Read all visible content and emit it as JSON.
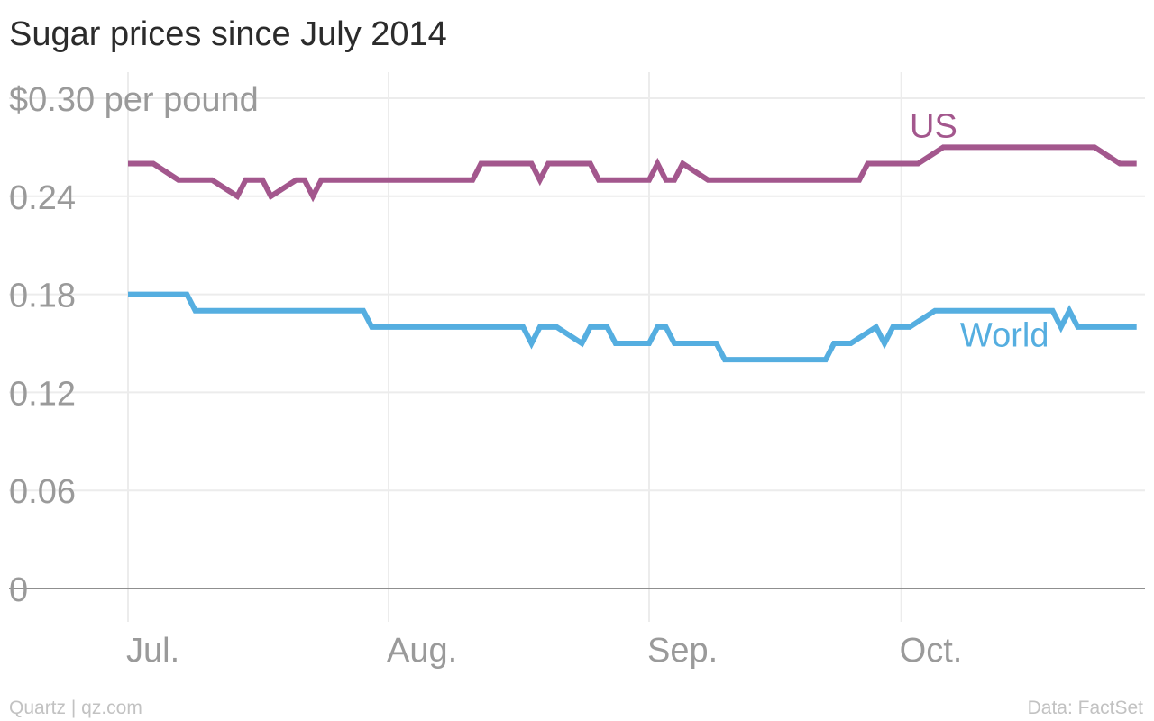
{
  "chart_data": {
    "type": "line",
    "title": "Sugar prices since July 2014",
    "xlabel": "",
    "ylabel": "",
    "ylim": [
      0,
      0.3
    ],
    "y_ticks": [
      0,
      0.06,
      0.12,
      0.18,
      0.24,
      0.3
    ],
    "y_tick_labels": [
      "0",
      "0.06",
      "0.12",
      "0.18",
      "0.24",
      "$0.30 per pound"
    ],
    "x_ticks": [
      "2014-07-01",
      "2014-08-01",
      "2014-09-01",
      "2014-10-01"
    ],
    "x_tick_labels": [
      "Jul.",
      "Aug.",
      "Sep.",
      "Oct."
    ],
    "xlim": [
      "2014-07-01",
      "2014-10-29"
    ],
    "grid": true,
    "legend": "direct labels on lines",
    "series": [
      {
        "name": "US",
        "color": "#a3578d",
        "points": [
          [
            "2014-07-01",
            0.26
          ],
          [
            "2014-07-04",
            0.26
          ],
          [
            "2014-07-07",
            0.25
          ],
          [
            "2014-07-11",
            0.25
          ],
          [
            "2014-07-14",
            0.24
          ],
          [
            "2014-07-15",
            0.25
          ],
          [
            "2014-07-17",
            0.25
          ],
          [
            "2014-07-18",
            0.24
          ],
          [
            "2014-07-21",
            0.25
          ],
          [
            "2014-07-22",
            0.25
          ],
          [
            "2014-07-23",
            0.24
          ],
          [
            "2014-07-24",
            0.25
          ],
          [
            "2014-08-11",
            0.25
          ],
          [
            "2014-08-12",
            0.26
          ],
          [
            "2014-08-18",
            0.26
          ],
          [
            "2014-08-19",
            0.25
          ],
          [
            "2014-08-20",
            0.26
          ],
          [
            "2014-08-25",
            0.26
          ],
          [
            "2014-08-26",
            0.25
          ],
          [
            "2014-09-01",
            0.25
          ],
          [
            "2014-09-02",
            0.26
          ],
          [
            "2014-09-03",
            0.25
          ],
          [
            "2014-09-04",
            0.25
          ],
          [
            "2014-09-05",
            0.26
          ],
          [
            "2014-09-08",
            0.25
          ],
          [
            "2014-09-26",
            0.25
          ],
          [
            "2014-09-27",
            0.26
          ],
          [
            "2014-10-03",
            0.26
          ],
          [
            "2014-10-06",
            0.27
          ],
          [
            "2014-10-24",
            0.27
          ],
          [
            "2014-10-27",
            0.26
          ],
          [
            "2014-10-29",
            0.26
          ]
        ]
      },
      {
        "name": "World",
        "color": "#55aee0",
        "points": [
          [
            "2014-07-01",
            0.18
          ],
          [
            "2014-07-08",
            0.18
          ],
          [
            "2014-07-09",
            0.17
          ],
          [
            "2014-07-29",
            0.17
          ],
          [
            "2014-07-30",
            0.16
          ],
          [
            "2014-08-17",
            0.16
          ],
          [
            "2014-08-18",
            0.15
          ],
          [
            "2014-08-19",
            0.16
          ],
          [
            "2014-08-21",
            0.16
          ],
          [
            "2014-08-24",
            0.15
          ],
          [
            "2014-08-25",
            0.16
          ],
          [
            "2014-08-27",
            0.16
          ],
          [
            "2014-08-28",
            0.15
          ],
          [
            "2014-09-01",
            0.15
          ],
          [
            "2014-09-02",
            0.16
          ],
          [
            "2014-09-03",
            0.16
          ],
          [
            "2014-09-04",
            0.15
          ],
          [
            "2014-09-09",
            0.15
          ],
          [
            "2014-09-10",
            0.14
          ],
          [
            "2014-09-22",
            0.14
          ],
          [
            "2014-09-23",
            0.15
          ],
          [
            "2014-09-25",
            0.15
          ],
          [
            "2014-09-28",
            0.16
          ],
          [
            "2014-09-29",
            0.15
          ],
          [
            "2014-09-30",
            0.16
          ],
          [
            "2014-10-02",
            0.16
          ],
          [
            "2014-10-05",
            0.17
          ],
          [
            "2014-10-19",
            0.17
          ],
          [
            "2014-10-20",
            0.16
          ],
          [
            "2014-10-21",
            0.17
          ],
          [
            "2014-10-22",
            0.16
          ],
          [
            "2014-10-29",
            0.16
          ]
        ]
      }
    ]
  },
  "footer": {
    "source_left": "Quartz | qz.com",
    "source_right": "Data: FactSet"
  }
}
